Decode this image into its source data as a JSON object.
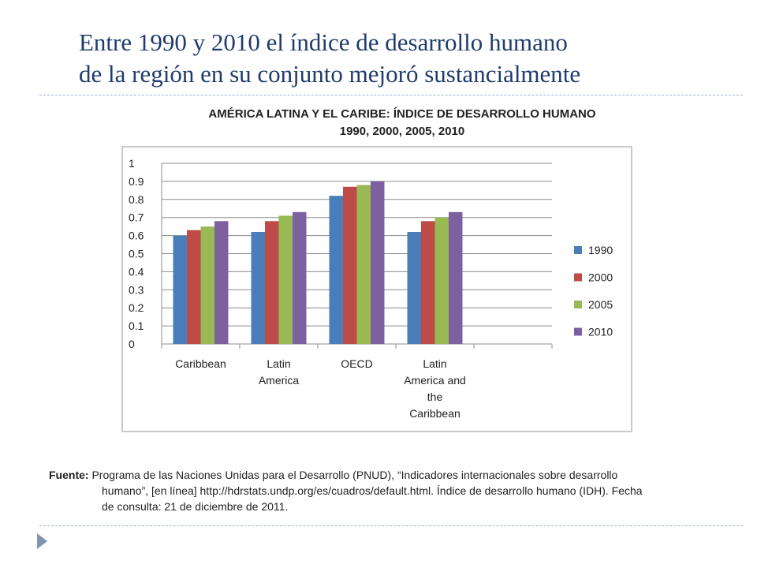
{
  "slide": {
    "title_line1": "Entre 1990 y 2010 el índice de desarrollo humano",
    "title_line2": "de la región en su conjunto mejoró sustancialmente"
  },
  "chart_data": {
    "type": "bar",
    "title_line1": "AMÉRICA LATINA Y EL CARIBE: ÍNDICE DE DESARROLLO HUMANO",
    "title_line2": "1990, 2000, 2005, 2010",
    "categories": [
      [
        "Caribbean"
      ],
      [
        "Latin",
        "America"
      ],
      [
        "OECD"
      ],
      [
        "Latin",
        "America and",
        "the",
        "Caribbean"
      ]
    ],
    "series": [
      {
        "name": "1990",
        "color": "#4a7ebb",
        "values": [
          0.6,
          0.62,
          0.82,
          0.62
        ]
      },
      {
        "name": "2000",
        "color": "#be4b48",
        "values": [
          0.63,
          0.68,
          0.87,
          0.68
        ]
      },
      {
        "name": "2005",
        "color": "#98b954",
        "values": [
          0.65,
          0.71,
          0.88,
          0.7
        ]
      },
      {
        "name": "2010",
        "color": "#7d60a0",
        "values": [
          0.68,
          0.73,
          0.9,
          0.73
        ]
      }
    ],
    "yticks": [
      "0",
      "0.1",
      "0.2",
      "0.3",
      "0.4",
      "0.5",
      "0.6",
      "0.7",
      "0.8",
      "0.9",
      "1"
    ],
    "ylim": [
      0,
      1
    ],
    "grid": true,
    "legend": "right"
  },
  "source": {
    "label": "Fuente:",
    "line1": "Programa de las Naciones Unidas para el Desarrollo (PNUD), “Indicadores internacionales sobre desarrollo",
    "line2": "humano”, [en línea] http://hdrstats.undp.org/es/cuadros/default.html. Índice de desarrollo humano (IDH). Fecha",
    "line3": "de consulta: 21 de diciembre de 2011."
  }
}
